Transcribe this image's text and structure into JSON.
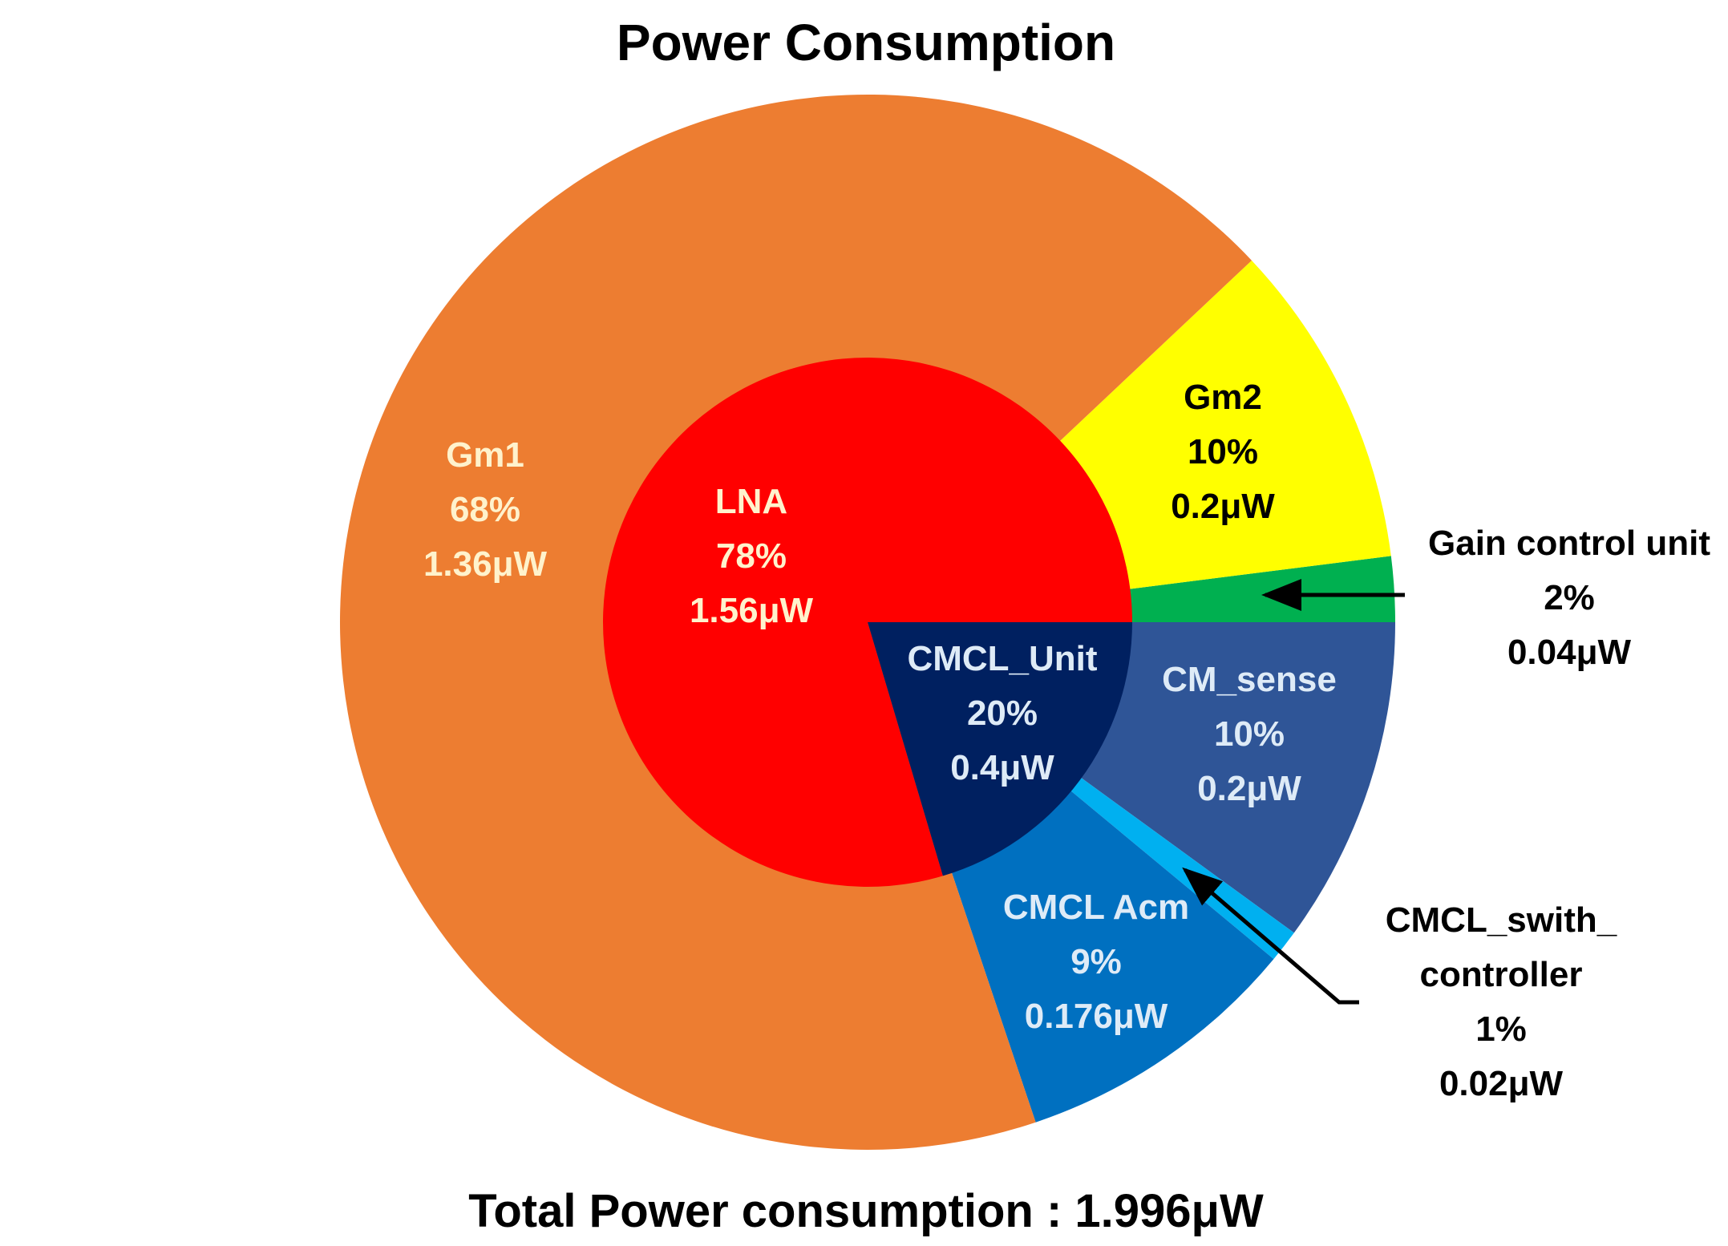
{
  "chart_data": {
    "type": "pie",
    "title": "Power Consumption",
    "footer": "Total Power consumption : 1.996μW",
    "outer_ring": [
      {
        "name": "Gm1",
        "percent_label": "68%",
        "power_label": "1.36μW",
        "value": 1.36,
        "color": "#ED7D31",
        "label_color": "#FFF2CC"
      },
      {
        "name": "Gm2",
        "percent_label": "10%",
        "power_label": "0.2μW",
        "value": 0.2,
        "color": "#FFFF00",
        "label_color": "#000000"
      },
      {
        "name": "Gain control unit",
        "percent_label": "2%",
        "power_label": "0.04μW",
        "value": 0.04,
        "color": "#00B050",
        "label_color": "#000000"
      },
      {
        "name": "CM_sense",
        "percent_label": "10%",
        "power_label": "0.2μW",
        "value": 0.2,
        "color": "#2F5597",
        "label_color": "#DEEBF7"
      },
      {
        "name": "CMCL_swith_controller",
        "display_lines": [
          "CMCL_swith_",
          "controller"
        ],
        "percent_label": "1%",
        "power_label": "0.02μW",
        "value": 0.02,
        "color": "#00B0F0",
        "label_color": "#000000"
      },
      {
        "name": "CMCL Acm",
        "percent_label": "9%",
        "power_label": "0.176μW",
        "value": 0.176,
        "color": "#0070C0",
        "label_color": "#DEEBF7"
      }
    ],
    "inner_ring": [
      {
        "name": "LNA",
        "percent_label": "78%",
        "power_label": "1.56μW",
        "value": 1.56,
        "color": "#FF0000",
        "label_color": "#FFF2CC"
      },
      {
        "name": "CMCL_Unit",
        "percent_label": "20%",
        "power_label": "0.4μW",
        "value": 0.4,
        "color": "#002060",
        "label_color": "#DEEBF7"
      }
    ],
    "start_angle_deg": 0,
    "direction": "clockwise-from-3-oclock-reversed"
  }
}
